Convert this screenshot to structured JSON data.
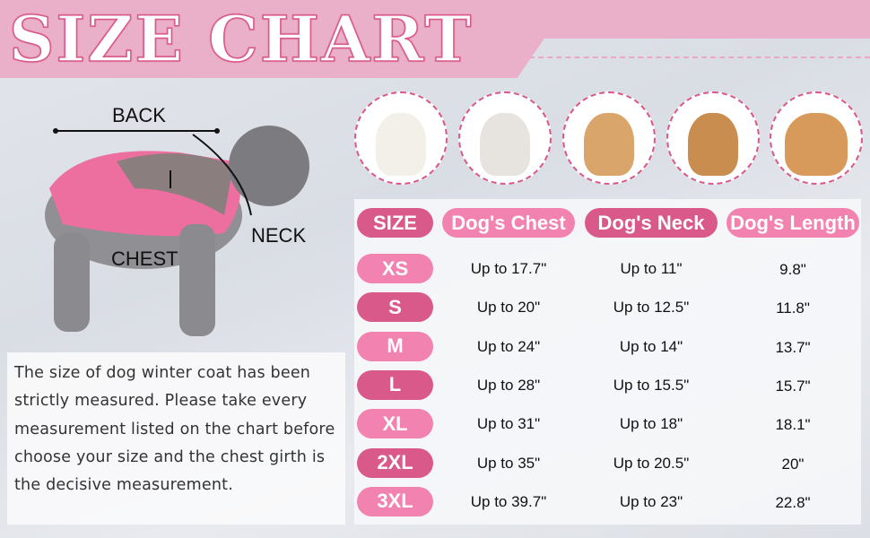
{
  "title": "SIZE CHART",
  "colors": {
    "banner": "#ebb0c9",
    "pill_dark": "#d9598a",
    "pill_light": "#f283b0",
    "circle_border": "#d9578a"
  },
  "diagram_labels": {
    "back": "BACK",
    "neck": "NECK",
    "chest": "CHEST"
  },
  "dog_photos": [
    "pomeranian",
    "french-bulldog",
    "spitz",
    "beagle",
    "golden-retriever"
  ],
  "table": {
    "headers": [
      "SIZE",
      "Dog's Chest",
      "Dog's Neck",
      "Dog's Length"
    ],
    "rows": [
      {
        "size": "XS",
        "chest": "Up to 17.7\"",
        "neck": "Up to 11\"",
        "length": "9.8\""
      },
      {
        "size": "S",
        "chest": "Up to 20\"",
        "neck": "Up to 12.5\"",
        "length": "11.8\""
      },
      {
        "size": "M",
        "chest": "Up to 24\"",
        "neck": "Up to 14\"",
        "length": "13.7\""
      },
      {
        "size": "L",
        "chest": "Up to 28\"",
        "neck": "Up to 15.5\"",
        "length": "15.7\""
      },
      {
        "size": "XL",
        "chest": "Up to 31\"",
        "neck": "Up to 18\"",
        "length": "18.1\""
      },
      {
        "size": "2XL",
        "chest": "Up to 35\"",
        "neck": "Up to 20.5\"",
        "length": "20\""
      },
      {
        "size": "3XL",
        "chest": "Up to 39.7\"",
        "neck": "Up to 23\"",
        "length": "22.8\""
      }
    ]
  },
  "description": "The size of dog winter coat has been strictly measured. Please take every measurement listed on the chart before choose your size and the chest girth is the decisive measurement."
}
